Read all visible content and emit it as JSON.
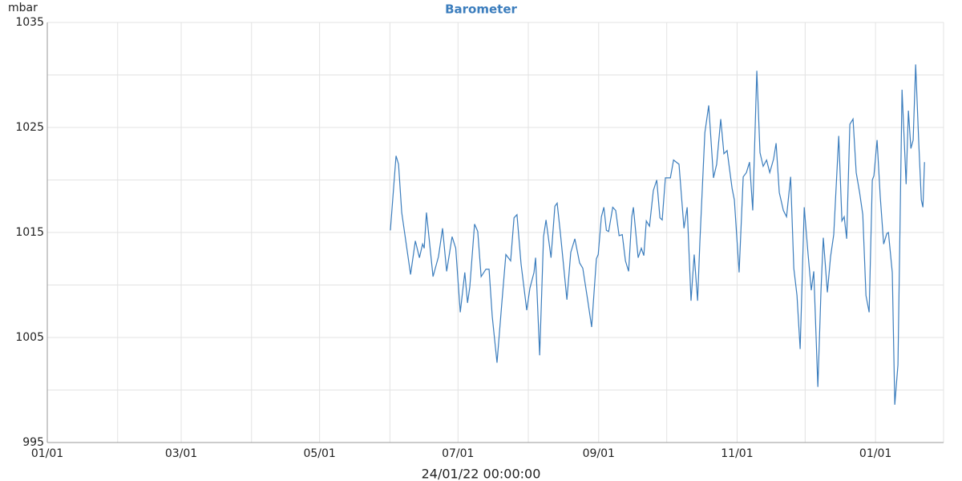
{
  "chart_data": {
    "type": "line",
    "title": "Barometer",
    "y_label": "mbar",
    "footer": "24/01/22 00:00:00",
    "color": "#3b7dbd",
    "title_color": "#3b7dbd",
    "grid": true,
    "xlim": [
      0,
      395
    ],
    "ylim": [
      995,
      1035
    ],
    "xticks": [
      {
        "value": 0,
        "label": "01/01"
      },
      {
        "value": 59,
        "label": "03/01"
      },
      {
        "value": 120,
        "label": "05/01"
      },
      {
        "value": 181,
        "label": "07/01"
      },
      {
        "value": 243,
        "label": "09/01"
      },
      {
        "value": 304,
        "label": "11/01"
      },
      {
        "value": 365,
        "label": "01/01"
      }
    ],
    "xgrid_minor": [
      31,
      90,
      151,
      212,
      273,
      334,
      395
    ],
    "yticks": [
      995,
      1005,
      1015,
      1025,
      1035
    ],
    "ygrid_minor": [
      1000,
      1010,
      1020,
      1030
    ],
    "x": [
      151.2,
      153.7,
      154.8,
      156.2,
      160.1,
      162.2,
      164,
      165.4,
      166.1,
      167.1,
      170,
      172.4,
      174.2,
      176,
      178.4,
      180,
      182,
      184,
      185.2,
      186.2,
      188.3,
      189.7,
      191.2,
      193.3,
      194.7,
      196.1,
      198.2,
      200.4,
      202.1,
      204.2,
      205.7,
      207,
      208.8,
      211.3,
      212.7,
      214.5,
      215.2,
      217,
      218.7,
      219.8,
      222,
      223.7,
      224.7,
      226.1,
      229,
      230.7,
      232.5,
      234.6,
      236,
      238.2,
      239.9,
      242,
      242.8,
      244.2,
      245.3,
      246.4,
      247.4,
      249.2,
      250.5,
      252,
      253.4,
      254.8,
      256.2,
      257.6,
      258.3,
      260.4,
      261.8,
      262.9,
      264,
      265.4,
      267.1,
      268.6,
      270,
      271,
      272.4,
      274.6,
      276,
      278.4,
      280.6,
      282,
      283.7,
      285.1,
      286.6,
      287.6,
      289.8,
      291.5,
      293.6,
      295,
      296.8,
      298.2,
      299.6,
      301.8,
      302.8,
      304.9,
      306.7,
      308.1,
      309.5,
      310.9,
      312.7,
      314.1,
      315.5,
      317,
      318.4,
      320.1,
      321.2,
      322.6,
      324.4,
      325.8,
      327.6,
      329,
      330.4,
      331.8,
      333.6,
      335.3,
      336.7,
      337.8,
      339.6,
      341,
      342,
      343.8,
      345.2,
      346.6,
      348.8,
      350.2,
      351.2,
      352.3,
      353.7,
      355.1,
      356.5,
      358,
      359.4,
      360.8,
      362.2,
      363.6,
      364.3,
      365.7,
      367.1,
      368.6,
      370,
      370.7,
      372.4,
      373.5,
      374.9,
      376.7,
      378.5,
      379.5,
      380.6,
      381.6,
      382.7,
      384.1,
      385.2,
      385.9,
      386.6
    ],
    "series": [
      {
        "name": "Barometer",
        "values": [
          1015.2,
          1022.3,
          1021.5,
          1016.9,
          1011,
          1014.2,
          1012.6,
          1013.9,
          1013.5,
          1016.9,
          1010.8,
          1012.7,
          1015.4,
          1011.3,
          1014.6,
          1013.5,
          1007.4,
          1011.2,
          1008.3,
          1009.8,
          1015.8,
          1015.1,
          1010.8,
          1011.5,
          1011.5,
          1007,
          1002.6,
          1008.5,
          1012.9,
          1012.3,
          1016.4,
          1016.7,
          1012,
          1007.6,
          1009.7,
          1011.2,
          1012.6,
          1003.3,
          1014.6,
          1016.2,
          1012.6,
          1017.5,
          1017.8,
          1015,
          1008.6,
          1013.1,
          1014.4,
          1012.1,
          1011.6,
          1008.5,
          1006,
          1012.5,
          1012.9,
          1016.5,
          1017.4,
          1015.2,
          1015.1,
          1017.4,
          1017.1,
          1014.7,
          1014.8,
          1012.3,
          1011.3,
          1016.5,
          1017.4,
          1012.6,
          1013.5,
          1012.8,
          1016.1,
          1015.6,
          1019,
          1020,
          1016.4,
          1016.2,
          1020.2,
          1020.2,
          1021.9,
          1021.5,
          1015.4,
          1017.4,
          1008.5,
          1012.9,
          1008.5,
          1014.1,
          1024.5,
          1027.1,
          1020.2,
          1021.5,
          1025.8,
          1022.5,
          1022.8,
          1019.2,
          1018.1,
          1011.2,
          1020.3,
          1020.7,
          1021.7,
          1017.1,
          1030.4,
          1022.6,
          1021.3,
          1021.9,
          1020.7,
          1022,
          1023.5,
          1018.8,
          1017.1,
          1016.5,
          1020.3,
          1011.6,
          1009,
          1003.9,
          1017.4,
          1012.9,
          1009.5,
          1011.3,
          1000.3,
          1009.6,
          1014.5,
          1009.3,
          1012.7,
          1014.8,
          1024.2,
          1016.1,
          1016.5,
          1014.4,
          1025.3,
          1025.8,
          1020.7,
          1018.8,
          1016.7,
          1009,
          1007.4,
          1020,
          1020.4,
          1023.8,
          1018.4,
          1013.9,
          1014.9,
          1015,
          1011.2,
          998.6,
          1002.4,
          1028.6,
          1019.6,
          1026.6,
          1023,
          1023.8,
          1031,
          1023.4,
          1018.1,
          1017.4,
          1021.7
        ]
      }
    ]
  }
}
